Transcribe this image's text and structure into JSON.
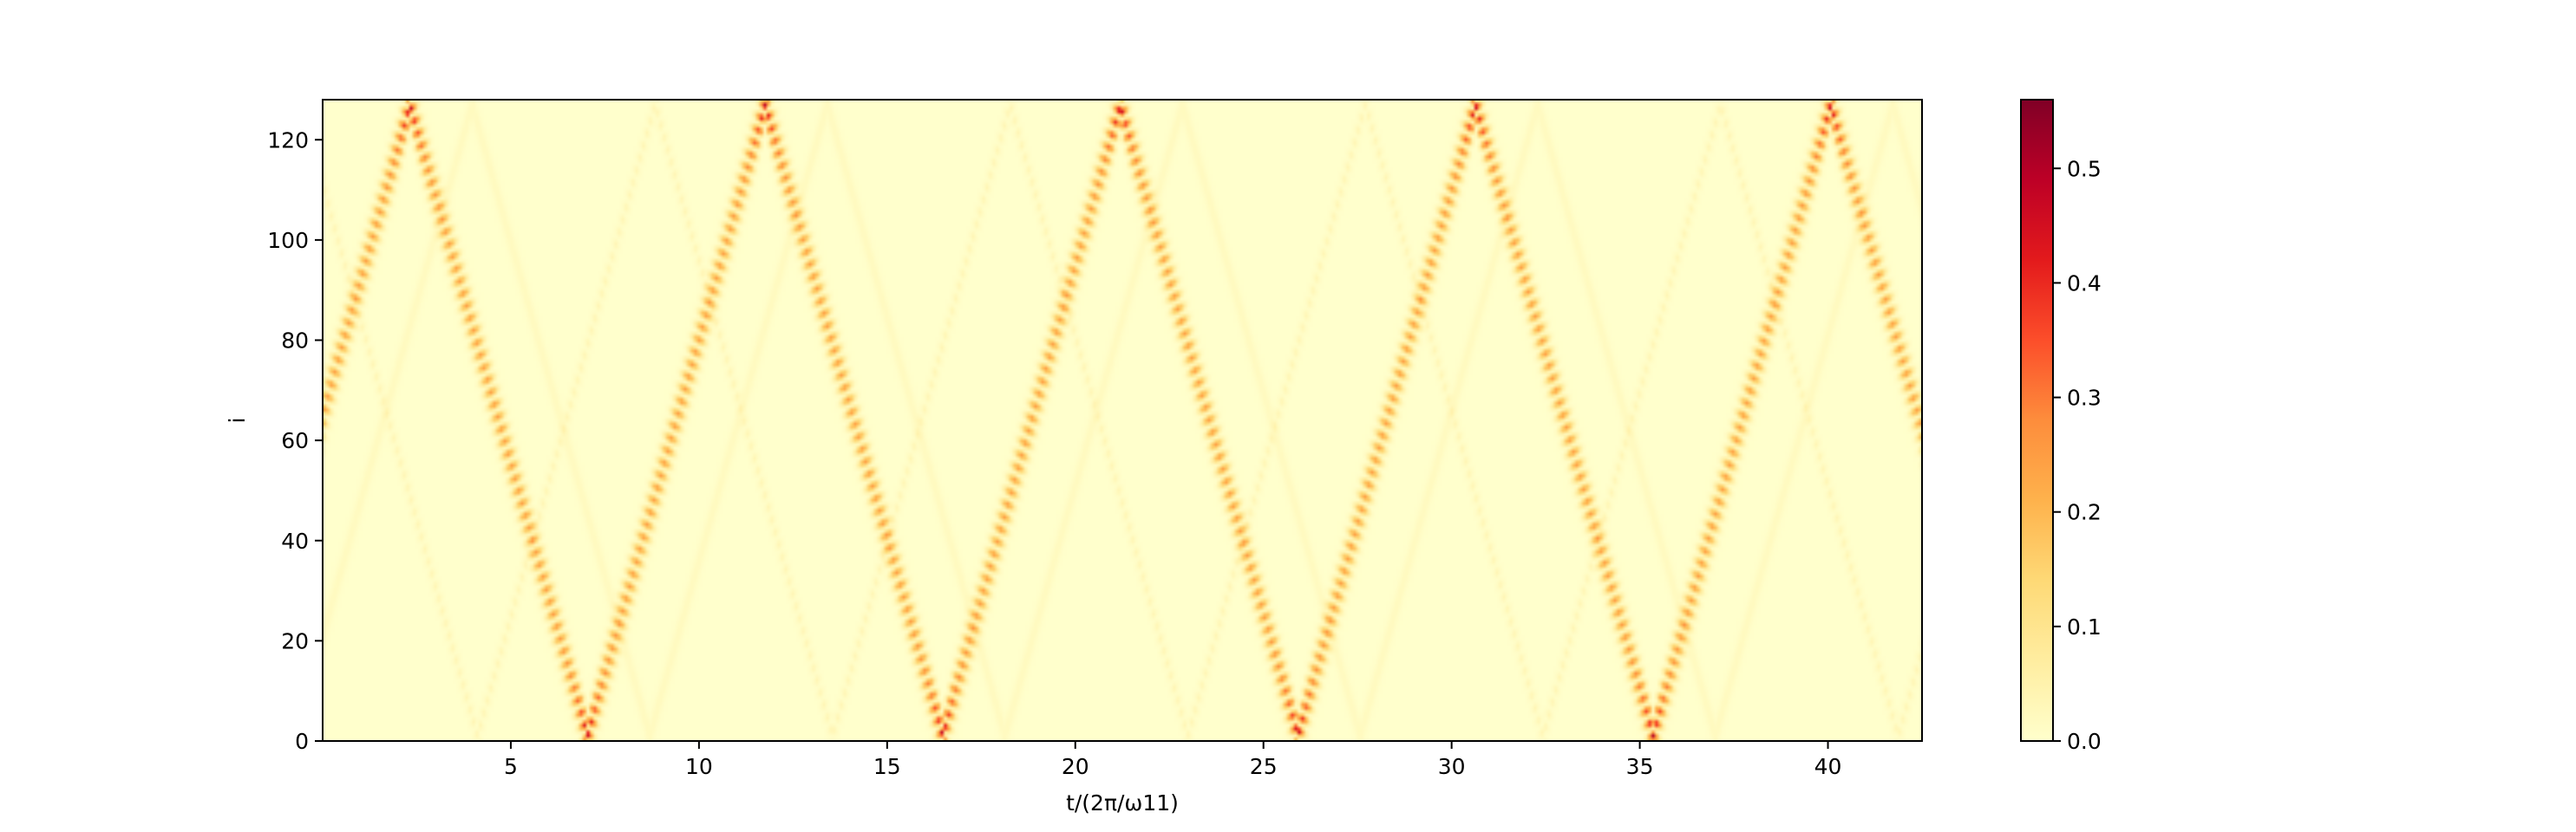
{
  "chart_data": {
    "type": "heatmap",
    "title": "",
    "xlabel": "t/(2π/ω11)",
    "ylabel": "i",
    "xlim": [
      0,
      42.5
    ],
    "ylim": [
      0,
      128
    ],
    "x_ticks": [
      5,
      10,
      15,
      20,
      25,
      30,
      35,
      40
    ],
    "y_ticks": [
      0,
      20,
      40,
      60,
      80,
      100,
      120
    ],
    "colormap": "YlOrRd",
    "colorbar": {
      "range": [
        0,
        0.56
      ],
      "ticks": [
        "0.0",
        "0.1",
        "0.2",
        "0.3",
        "0.4",
        "0.5"
      ],
      "colors": [
        "#ffffcc",
        "#ffeda0",
        "#fed976",
        "#feb24c",
        "#fd8d3c",
        "#fc4e2a",
        "#e31a1c",
        "#bd0026",
        "#800026"
      ]
    },
    "grid": false,
    "legend": "none",
    "pattern": {
      "description_free": true,
      "wave_speed_sites_per_period": 26.7,
      "start_site": 64,
      "reflections_top_t": [
        2.4,
        11.9,
        21.4,
        30.9,
        40.3
      ],
      "reflections_bottom_t": [
        7.2,
        16.7,
        26.1,
        35.6
      ],
      "peak_value_at_reflection": 0.55,
      "peak_value_in_bulk": 0.25,
      "secondary_faint_ridges": true
    }
  }
}
